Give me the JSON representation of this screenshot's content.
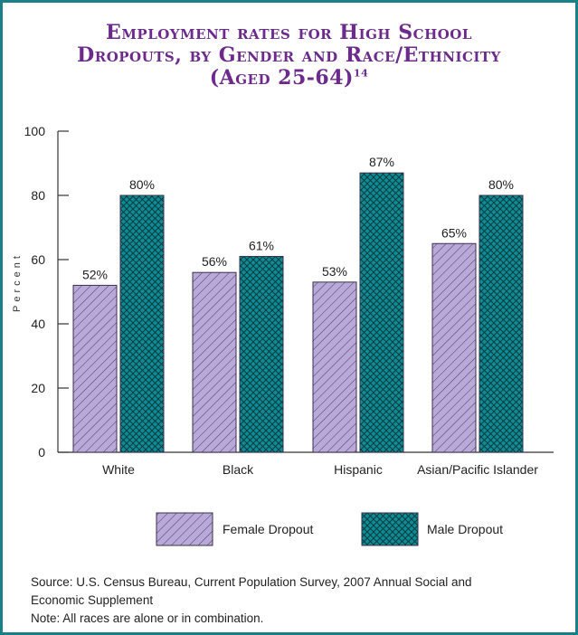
{
  "title": {
    "line1": "Employment rates for High School",
    "line2": "Dropouts, by Gender and Race/Ethnicity",
    "line3": "(Aged 25-64)",
    "footnote": "14"
  },
  "chart_data": {
    "type": "bar",
    "categories": [
      "White",
      "Black",
      "Hispanic",
      "Asian/Pacific Islander"
    ],
    "series": [
      {
        "name": "Female Dropout",
        "values": [
          52,
          56,
          53,
          65
        ],
        "labels": [
          "52%",
          "56%",
          "53%",
          "65%"
        ],
        "color": "#b9a9d8",
        "pattern": "diagonal-hatch"
      },
      {
        "name": "Male Dropout",
        "values": [
          80,
          61,
          87,
          80
        ],
        "labels": [
          "80%",
          "61%",
          "87%",
          "80%"
        ],
        "color": "#0e8c95",
        "pattern": "cross-hatch"
      }
    ],
    "ylabel": "Percent",
    "ylim": [
      0,
      100
    ],
    "yticks": [
      0,
      20,
      40,
      60,
      80,
      100
    ],
    "legend_position": "bottom"
  },
  "source": {
    "line1": "Source: U.S. Census Bureau, Current Population Survey, 2007 Annual Social and",
    "line2": "Economic Supplement",
    "note": "Note: All races are alone or in combination."
  },
  "colors": {
    "frame": "#1a7f86",
    "title": "#6b2a8c"
  }
}
